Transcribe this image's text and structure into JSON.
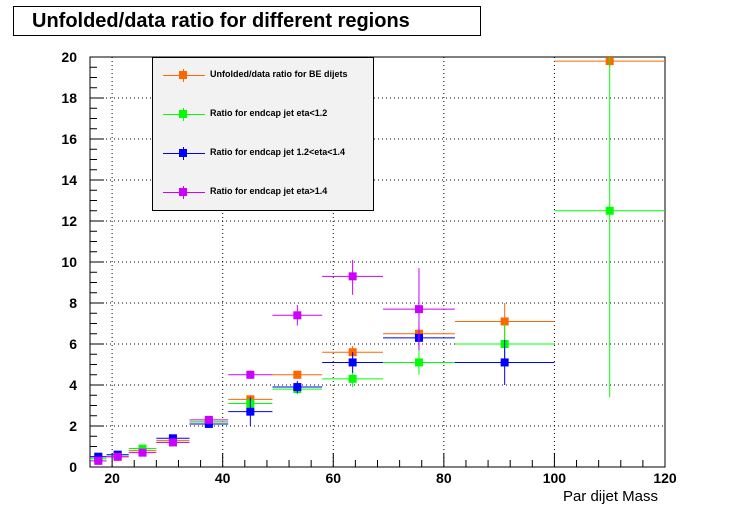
{
  "chart_data": {
    "type": "scatter",
    "title": "Unfolded/data ratio for different regions",
    "xlabel": "Par dijet Mass",
    "ylabel": "",
    "xlim": [
      16,
      120
    ],
    "ylim": [
      0,
      20
    ],
    "x_ticks": [
      20,
      40,
      60,
      80,
      100,
      120
    ],
    "y_ticks": [
      0,
      2,
      4,
      6,
      8,
      10,
      12,
      14,
      16,
      18,
      20
    ],
    "grid": true,
    "legend_position": "top-left",
    "series": [
      {
        "name": "Unfolded/data ratio for BE dijets",
        "color": "#ff6600",
        "points": [
          {
            "x": 17.5,
            "y": 0.5,
            "xlo": 16.0,
            "xhi": 19.0,
            "ylo": 0.45,
            "yhi": 0.55
          },
          {
            "x": 21.0,
            "y": 0.5,
            "xlo": 19.0,
            "xhi": 23.0,
            "ylo": 0.45,
            "yhi": 0.55
          },
          {
            "x": 25.5,
            "y": 0.8,
            "xlo": 23.0,
            "xhi": 28.0,
            "ylo": 0.75,
            "yhi": 0.85
          },
          {
            "x": 31.0,
            "y": 1.3,
            "xlo": 28.0,
            "xhi": 34.0,
            "ylo": 1.22,
            "yhi": 1.38
          },
          {
            "x": 37.5,
            "y": 2.2,
            "xlo": 34.0,
            "xhi": 41.0,
            "ylo": 2.05,
            "yhi": 2.35
          },
          {
            "x": 45.0,
            "y": 3.3,
            "xlo": 41.0,
            "xhi": 49.0,
            "ylo": 3.1,
            "yhi": 3.5
          },
          {
            "x": 53.5,
            "y": 4.5,
            "xlo": 49.0,
            "xhi": 58.0,
            "ylo": 4.3,
            "yhi": 4.7
          },
          {
            "x": 63.5,
            "y": 5.6,
            "xlo": 58.0,
            "xhi": 69.0,
            "ylo": 5.3,
            "yhi": 5.9
          },
          {
            "x": 75.5,
            "y": 6.5,
            "xlo": 69.0,
            "xhi": 82.0,
            "ylo": 6.1,
            "yhi": 6.9
          },
          {
            "x": 91.0,
            "y": 7.1,
            "xlo": 82.0,
            "xhi": 100.0,
            "ylo": 6.2,
            "yhi": 8.0
          },
          {
            "x": 110.0,
            "y": 19.8,
            "xlo": 100.0,
            "xhi": 120.0,
            "ylo": 19.5,
            "yhi": 20.0
          }
        ]
      },
      {
        "name": "Ratio for endcap jet eta<1.2",
        "color": "#00ff00",
        "points": [
          {
            "x": 17.5,
            "y": 0.4,
            "xlo": 16.0,
            "xhi": 19.0,
            "ylo": 0.35,
            "yhi": 0.45
          },
          {
            "x": 21.0,
            "y": 0.6,
            "xlo": 19.0,
            "xhi": 23.0,
            "ylo": 0.55,
            "yhi": 0.65
          },
          {
            "x": 25.5,
            "y": 0.9,
            "xlo": 23.0,
            "xhi": 28.0,
            "ylo": 0.85,
            "yhi": 0.95
          },
          {
            "x": 31.0,
            "y": 1.2,
            "xlo": 28.0,
            "xhi": 34.0,
            "ylo": 1.12,
            "yhi": 1.28
          },
          {
            "x": 37.5,
            "y": 2.2,
            "xlo": 34.0,
            "xhi": 41.0,
            "ylo": 2.05,
            "yhi": 2.35
          },
          {
            "x": 45.0,
            "y": 3.1,
            "xlo": 41.0,
            "xhi": 49.0,
            "ylo": 2.8,
            "yhi": 3.4
          },
          {
            "x": 53.5,
            "y": 3.8,
            "xlo": 49.0,
            "xhi": 58.0,
            "ylo": 3.55,
            "yhi": 4.05
          },
          {
            "x": 63.5,
            "y": 4.3,
            "xlo": 58.0,
            "xhi": 69.0,
            "ylo": 3.9,
            "yhi": 4.7
          },
          {
            "x": 75.5,
            "y": 5.1,
            "xlo": 69.0,
            "xhi": 82.0,
            "ylo": 4.5,
            "yhi": 5.7
          },
          {
            "x": 91.0,
            "y": 6.0,
            "xlo": 82.0,
            "xhi": 100.0,
            "ylo": 5.0,
            "yhi": 7.0
          },
          {
            "x": 110.0,
            "y": 12.5,
            "xlo": 100.0,
            "xhi": 120.0,
            "ylo": 3.4,
            "yhi": 20.0
          }
        ]
      },
      {
        "name": "Ratio for endcap jet 1.2<eta<1.4",
        "color": "#0000ff",
        "points": [
          {
            "x": 17.5,
            "y": 0.5,
            "xlo": 16.0,
            "xhi": 19.0,
            "ylo": 0.4,
            "yhi": 0.6
          },
          {
            "x": 21.0,
            "y": 0.6,
            "xlo": 19.0,
            "xhi": 23.0,
            "ylo": 0.5,
            "yhi": 0.7
          },
          {
            "x": 31.0,
            "y": 1.4,
            "xlo": 28.0,
            "xhi": 34.0,
            "ylo": 1.3,
            "yhi": 1.5
          },
          {
            "x": 37.5,
            "y": 2.1,
            "xlo": 34.0,
            "xhi": 41.0,
            "ylo": 1.95,
            "yhi": 2.25
          },
          {
            "x": 45.0,
            "y": 2.7,
            "xlo": 41.0,
            "xhi": 49.0,
            "ylo": 2.0,
            "yhi": 3.4
          },
          {
            "x": 53.5,
            "y": 3.9,
            "xlo": 49.0,
            "xhi": 58.0,
            "ylo": 3.6,
            "yhi": 4.2
          },
          {
            "x": 63.5,
            "y": 5.1,
            "xlo": 58.0,
            "xhi": 69.0,
            "ylo": 4.6,
            "yhi": 5.6
          },
          {
            "x": 75.5,
            "y": 6.3,
            "xlo": 69.0,
            "xhi": 82.0,
            "ylo": 5.7,
            "yhi": 6.9
          },
          {
            "x": 91.0,
            "y": 5.1,
            "xlo": 82.0,
            "xhi": 100.0,
            "ylo": 4.0,
            "yhi": 6.2
          }
        ]
      },
      {
        "name": "Ratio for endcap jet eta>1.4",
        "color": "#cc00ff",
        "points": [
          {
            "x": 17.5,
            "y": 0.3,
            "xlo": 16.0,
            "xhi": 19.0,
            "ylo": 0.22,
            "yhi": 0.38
          },
          {
            "x": 21.0,
            "y": 0.5,
            "xlo": 19.0,
            "xhi": 23.0,
            "ylo": 0.42,
            "yhi": 0.58
          },
          {
            "x": 25.5,
            "y": 0.7,
            "xlo": 23.0,
            "xhi": 28.0,
            "ylo": 0.62,
            "yhi": 0.78
          },
          {
            "x": 31.0,
            "y": 1.2,
            "xlo": 28.0,
            "xhi": 34.0,
            "ylo": 1.1,
            "yhi": 1.3
          },
          {
            "x": 37.5,
            "y": 2.3,
            "xlo": 34.0,
            "xhi": 41.0,
            "ylo": 2.15,
            "yhi": 2.45
          },
          {
            "x": 45.0,
            "y": 4.5,
            "xlo": 41.0,
            "xhi": 49.0,
            "ylo": 4.3,
            "yhi": 4.7
          },
          {
            "x": 53.5,
            "y": 7.4,
            "xlo": 49.0,
            "xhi": 58.0,
            "ylo": 6.9,
            "yhi": 7.9
          },
          {
            "x": 63.5,
            "y": 9.3,
            "xlo": 58.0,
            "xhi": 69.0,
            "ylo": 8.4,
            "yhi": 10.1
          },
          {
            "x": 75.5,
            "y": 7.7,
            "xlo": 69.0,
            "xhi": 82.0,
            "ylo": 5.7,
            "yhi": 9.7
          }
        ]
      }
    ]
  }
}
